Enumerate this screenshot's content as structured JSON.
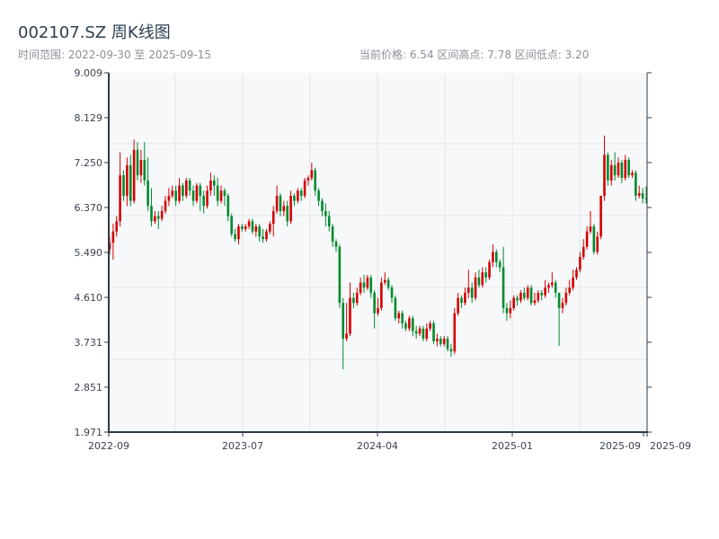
{
  "header": {
    "title": "002107.SZ 周K线图",
    "range_text": "时间范围: 2022-09-30 至 2025-09-15",
    "stats_text": "当前价格: 6.54  区间高点: 7.78  区间低点: 3.20"
  },
  "chart_data": {
    "type": "candlestick",
    "title": "002107.SZ 周K线图",
    "start_date": "2022-09-30",
    "end_date": "2025-09-15",
    "interval": "weekly",
    "ylim": [
      1.971,
      9.009
    ],
    "y_ticks": [
      "1.971",
      "2.851",
      "3.731",
      "4.610",
      "5.490",
      "6.370",
      "7.250",
      "8.129",
      "9.009"
    ],
    "x_ticks": [
      "2022-09",
      "2023-07",
      "2024-04",
      "2025-01",
      "2025-09",
      "2025-09"
    ],
    "grid": true,
    "colors": {
      "up": "#d40000",
      "down": "#008a2e",
      "background": "#f6f8fa",
      "grid": "#e1e4ea",
      "axis": "#2c3a4a"
    },
    "candle_fields": [
      "open",
      "close",
      "low",
      "high"
    ],
    "candles": [
      [
        5.55,
        5.68,
        5.45,
        5.8
      ],
      [
        5.68,
        5.9,
        5.35,
        6.05
      ],
      [
        5.9,
        6.1,
        5.8,
        6.2
      ],
      [
        6.1,
        7.0,
        6.0,
        7.45
      ],
      [
        7.0,
        6.6,
        6.5,
        7.1
      ],
      [
        6.6,
        7.2,
        6.4,
        7.35
      ],
      [
        7.2,
        6.5,
        6.4,
        7.4
      ],
      [
        6.5,
        7.5,
        6.45,
        7.7
      ],
      [
        7.5,
        7.0,
        6.9,
        7.65
      ],
      [
        7.0,
        7.3,
        6.85,
        7.5
      ],
      [
        7.3,
        6.9,
        6.8,
        7.65
      ],
      [
        6.9,
        6.4,
        6.3,
        7.35
      ],
      [
        6.4,
        6.1,
        6.0,
        6.75
      ],
      [
        6.1,
        6.2,
        6.05,
        6.3
      ],
      [
        6.2,
        6.15,
        5.95,
        6.3
      ],
      [
        6.15,
        6.3,
        6.1,
        6.4
      ],
      [
        6.3,
        6.5,
        6.25,
        6.6
      ],
      [
        6.5,
        6.6,
        6.4,
        6.75
      ],
      [
        6.6,
        6.7,
        6.55,
        6.8
      ],
      [
        6.7,
        6.5,
        6.4,
        6.8
      ],
      [
        6.5,
        6.8,
        6.45,
        6.95
      ],
      [
        6.8,
        6.6,
        6.5,
        6.85
      ],
      [
        6.6,
        6.9,
        6.55,
        6.95
      ],
      [
        6.9,
        6.7,
        6.6,
        6.95
      ],
      [
        6.7,
        6.5,
        6.4,
        6.8
      ],
      [
        6.5,
        6.8,
        6.45,
        6.85
      ],
      [
        6.8,
        6.6,
        6.3,
        6.85
      ],
      [
        6.6,
        6.4,
        6.25,
        6.7
      ],
      [
        6.4,
        6.7,
        6.35,
        6.8
      ],
      [
        6.7,
        6.9,
        6.6,
        7.05
      ],
      [
        6.9,
        6.8,
        6.6,
        7.0
      ],
      [
        6.8,
        6.5,
        6.4,
        6.95
      ],
      [
        6.5,
        6.7,
        6.45,
        6.8
      ],
      [
        6.7,
        6.6,
        6.4,
        6.75
      ],
      [
        6.6,
        6.2,
        6.1,
        6.65
      ],
      [
        6.2,
        5.85,
        5.8,
        6.25
      ],
      [
        5.85,
        5.75,
        5.7,
        5.95
      ],
      [
        5.75,
        6.0,
        5.65,
        6.05
      ],
      [
        6.0,
        5.95,
        5.9,
        6.05
      ],
      [
        5.95,
        6.0,
        5.9,
        6.05
      ],
      [
        6.0,
        6.1,
        5.95,
        6.15
      ],
      [
        6.1,
        5.9,
        5.85,
        6.15
      ],
      [
        5.9,
        6.0,
        5.8,
        6.05
      ],
      [
        6.0,
        5.8,
        5.7,
        6.05
      ],
      [
        5.8,
        5.75,
        5.68,
        5.95
      ],
      [
        5.75,
        5.9,
        5.7,
        5.95
      ],
      [
        5.9,
        6.05,
        5.85,
        6.1
      ],
      [
        6.05,
        6.3,
        5.8,
        6.4
      ],
      [
        6.3,
        6.6,
        6.25,
        6.8
      ],
      [
        6.6,
        6.3,
        6.2,
        6.65
      ],
      [
        6.3,
        6.4,
        6.2,
        6.5
      ],
      [
        6.4,
        6.1,
        6.0,
        6.5
      ],
      [
        6.1,
        6.6,
        6.05,
        6.7
      ],
      [
        6.6,
        6.5,
        6.4,
        6.65
      ],
      [
        6.5,
        6.7,
        6.45,
        6.75
      ],
      [
        6.7,
        6.6,
        6.5,
        6.75
      ],
      [
        6.6,
        6.9,
        6.55,
        6.95
      ],
      [
        6.9,
        6.95,
        6.8,
        7.0
      ],
      [
        6.95,
        7.1,
        6.9,
        7.25
      ],
      [
        7.1,
        6.7,
        6.6,
        7.15
      ],
      [
        6.7,
        6.5,
        6.4,
        6.75
      ],
      [
        6.5,
        6.3,
        6.2,
        6.55
      ],
      [
        6.3,
        6.2,
        6.0,
        6.45
      ],
      [
        6.2,
        6.0,
        5.9,
        6.3
      ],
      [
        6.0,
        5.7,
        5.6,
        6.05
      ],
      [
        5.7,
        5.6,
        5.5,
        5.75
      ],
      [
        5.6,
        4.5,
        4.4,
        5.65
      ],
      [
        4.5,
        3.8,
        3.2,
        4.6
      ],
      [
        3.8,
        3.9,
        3.75,
        4.5
      ],
      [
        3.9,
        4.6,
        3.85,
        4.9
      ],
      [
        4.6,
        4.5,
        4.4,
        4.7
      ],
      [
        4.5,
        4.7,
        4.45,
        4.8
      ],
      [
        4.7,
        4.9,
        4.65,
        5.0
      ],
      [
        4.9,
        4.8,
        4.7,
        5.05
      ],
      [
        4.8,
        5.0,
        4.75,
        5.05
      ],
      [
        5.0,
        4.7,
        4.6,
        5.05
      ],
      [
        4.7,
        4.3,
        4.0,
        4.75
      ],
      [
        4.3,
        4.4,
        4.25,
        4.6
      ],
      [
        4.4,
        4.9,
        4.35,
        5.0
      ],
      [
        4.9,
        4.95,
        4.85,
        5.1
      ],
      [
        4.95,
        4.8,
        4.75,
        5.0
      ],
      [
        4.8,
        4.6,
        4.5,
        4.85
      ],
      [
        4.6,
        4.2,
        4.15,
        4.65
      ],
      [
        4.2,
        4.3,
        4.1,
        4.35
      ],
      [
        4.3,
        4.1,
        4.0,
        4.35
      ],
      [
        4.1,
        4.0,
        3.95,
        4.15
      ],
      [
        4.0,
        4.2,
        3.95,
        4.25
      ],
      [
        4.2,
        3.95,
        3.85,
        4.25
      ],
      [
        3.95,
        3.9,
        3.8,
        4.05
      ],
      [
        3.9,
        4.0,
        3.85,
        4.05
      ],
      [
        4.0,
        3.8,
        3.75,
        4.05
      ],
      [
        3.8,
        4.0,
        3.75,
        4.1
      ],
      [
        4.0,
        4.1,
        3.95,
        4.15
      ],
      [
        4.1,
        3.75,
        3.7,
        4.15
      ],
      [
        3.75,
        3.8,
        3.65,
        3.9
      ],
      [
        3.8,
        3.7,
        3.65,
        3.85
      ],
      [
        3.7,
        3.8,
        3.65,
        3.85
      ],
      [
        3.8,
        3.6,
        3.55,
        3.85
      ],
      [
        3.6,
        3.55,
        3.45,
        3.7
      ],
      [
        3.55,
        4.3,
        3.5,
        4.4
      ],
      [
        4.3,
        4.6,
        4.25,
        4.7
      ],
      [
        4.6,
        4.5,
        4.4,
        4.65
      ],
      [
        4.5,
        4.7,
        4.45,
        4.8
      ],
      [
        4.7,
        4.8,
        4.6,
        5.15
      ],
      [
        4.8,
        4.6,
        4.5,
        4.9
      ],
      [
        4.6,
        5.0,
        4.55,
        5.1
      ],
      [
        5.0,
        4.85,
        4.8,
        5.15
      ],
      [
        4.85,
        5.1,
        4.8,
        5.2
      ],
      [
        5.1,
        5.0,
        4.9,
        5.2
      ],
      [
        5.0,
        5.3,
        4.95,
        5.35
      ],
      [
        5.3,
        5.5,
        5.2,
        5.65
      ],
      [
        5.5,
        5.3,
        5.2,
        5.55
      ],
      [
        5.3,
        5.2,
        5.1,
        5.35
      ],
      [
        5.2,
        4.4,
        4.3,
        5.6
      ],
      [
        4.4,
        4.3,
        4.15,
        4.5
      ],
      [
        4.3,
        4.4,
        4.2,
        4.55
      ],
      [
        4.4,
        4.6,
        4.35,
        4.65
      ],
      [
        4.6,
        4.55,
        4.45,
        4.65
      ],
      [
        4.55,
        4.7,
        4.5,
        4.75
      ],
      [
        4.7,
        4.6,
        4.55,
        4.8
      ],
      [
        4.6,
        4.8,
        4.55,
        4.85
      ],
      [
        4.8,
        4.5,
        4.45,
        4.85
      ],
      [
        4.5,
        4.55,
        4.45,
        4.7
      ],
      [
        4.55,
        4.7,
        4.5,
        4.75
      ],
      [
        4.7,
        4.65,
        4.55,
        4.75
      ],
      [
        4.65,
        4.8,
        4.6,
        4.95
      ],
      [
        4.8,
        4.85,
        4.7,
        4.9
      ],
      [
        4.85,
        4.9,
        4.8,
        5.1
      ],
      [
        4.9,
        4.7,
        4.6,
        4.95
      ],
      [
        4.7,
        4.4,
        3.66,
        4.7
      ],
      [
        4.4,
        4.5,
        4.3,
        4.6
      ],
      [
        4.5,
        4.7,
        4.45,
        4.8
      ],
      [
        4.7,
        4.8,
        4.65,
        4.95
      ],
      [
        4.8,
        5.0,
        4.75,
        5.15
      ],
      [
        5.0,
        5.15,
        4.95,
        5.2
      ],
      [
        5.15,
        5.4,
        5.1,
        5.5
      ],
      [
        5.4,
        5.6,
        5.35,
        5.75
      ],
      [
        5.6,
        5.9,
        5.55,
        6.0
      ],
      [
        5.9,
        6.0,
        5.85,
        6.3
      ],
      [
        6.0,
        5.5,
        5.45,
        6.05
      ],
      [
        5.5,
        5.8,
        5.45,
        5.9
      ],
      [
        5.8,
        6.6,
        5.75,
        6.6
      ],
      [
        6.6,
        7.4,
        6.5,
        7.78
      ],
      [
        7.4,
        6.9,
        6.8,
        7.45
      ],
      [
        6.9,
        7.2,
        6.8,
        7.3
      ],
      [
        7.2,
        7.0,
        6.9,
        7.45
      ],
      [
        7.0,
        7.25,
        6.95,
        7.35
      ],
      [
        7.25,
        6.95,
        6.85,
        7.3
      ],
      [
        6.95,
        7.3,
        6.9,
        7.4
      ],
      [
        7.3,
        7.0,
        6.95,
        7.35
      ],
      [
        7.0,
        7.05,
        6.95,
        7.1
      ],
      [
        7.05,
        6.6,
        6.5,
        7.1
      ],
      [
        6.6,
        6.65,
        6.55,
        6.8
      ],
      [
        6.65,
        6.55,
        6.45,
        6.75
      ],
      [
        6.55,
        6.54,
        6.45,
        6.78
      ]
    ]
  }
}
